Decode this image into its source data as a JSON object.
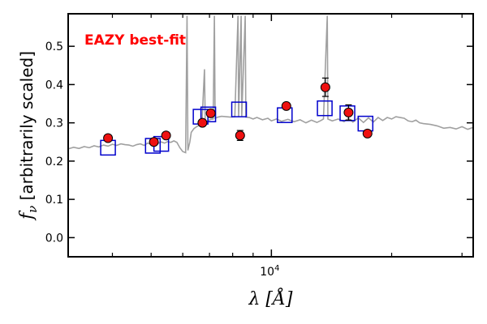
{
  "chart_data": {
    "type": "scatter",
    "xlabel": "λ [Å]",
    "ylabel": "f_ν [arbitrarily scaled]",
    "xscale": "log",
    "xlim": [
      3100,
      32000
    ],
    "ylim": [
      -0.05,
      0.585
    ],
    "grid": false,
    "annotation": {
      "text": "EAZY best-fit",
      "color": "#ff0000"
    },
    "yticks": [
      {
        "value": 0.0,
        "label": "0.0"
      },
      {
        "value": 0.1,
        "label": "0.1"
      },
      {
        "value": 0.2,
        "label": "0.2"
      },
      {
        "value": 0.3,
        "label": "0.3"
      },
      {
        "value": 0.4,
        "label": "0.4"
      },
      {
        "value": 0.5,
        "label": "0.5"
      }
    ],
    "xticks_major": [
      {
        "value": 10000,
        "base": "10",
        "exp": "4"
      }
    ],
    "xticks_minor": [
      4000,
      5000,
      6000,
      7000,
      8000,
      9000,
      20000,
      30000
    ],
    "series": [
      {
        "type": "line",
        "color": "#a0a0a0",
        "points": [
          [
            3100,
            0.232
          ],
          [
            3200,
            0.236
          ],
          [
            3300,
            0.233
          ],
          [
            3400,
            0.238
          ],
          [
            3500,
            0.235
          ],
          [
            3600,
            0.24
          ],
          [
            3700,
            0.237
          ],
          [
            3800,
            0.242
          ],
          [
            3900,
            0.239
          ],
          [
            4000,
            0.244
          ],
          [
            4100,
            0.241
          ],
          [
            4200,
            0.245
          ],
          [
            4300,
            0.243
          ],
          [
            4400,
            0.242
          ],
          [
            4500,
            0.239
          ],
          [
            4600,
            0.243
          ],
          [
            4700,
            0.245
          ],
          [
            4800,
            0.241
          ],
          [
            4900,
            0.247
          ],
          [
            5000,
            0.244
          ],
          [
            5100,
            0.249
          ],
          [
            5200,
            0.246
          ],
          [
            5300,
            0.25
          ],
          [
            5400,
            0.247
          ],
          [
            5500,
            0.251
          ],
          [
            5600,
            0.249
          ],
          [
            5700,
            0.253
          ],
          [
            5800,
            0.249
          ],
          [
            5900,
            0.235
          ],
          [
            6000,
            0.225
          ],
          [
            6100,
            0.222
          ],
          [
            6150,
            0.58
          ],
          [
            6180,
            0.228
          ],
          [
            6250,
            0.25
          ],
          [
            6300,
            0.275
          ],
          [
            6400,
            0.285
          ],
          [
            6500,
            0.29
          ],
          [
            6600,
            0.294
          ],
          [
            6700,
            0.296
          ],
          [
            6800,
            0.44
          ],
          [
            6830,
            0.3
          ],
          [
            6950,
            0.306
          ],
          [
            7050,
            0.309
          ],
          [
            7150,
            0.31
          ],
          [
            7200,
            0.58
          ],
          [
            7230,
            0.312
          ],
          [
            7350,
            0.315
          ],
          [
            7500,
            0.317
          ],
          [
            7700,
            0.316
          ],
          [
            7900,
            0.315
          ],
          [
            8100,
            0.316
          ],
          [
            8250,
            0.58
          ],
          [
            8280,
            0.316
          ],
          [
            8400,
            0.58
          ],
          [
            8430,
            0.317
          ],
          [
            8600,
            0.58
          ],
          [
            8630,
            0.315
          ],
          [
            8800,
            0.314
          ],
          [
            9000,
            0.31
          ],
          [
            9200,
            0.314
          ],
          [
            9500,
            0.308
          ],
          [
            9800,
            0.312
          ],
          [
            10000,
            0.305
          ],
          [
            10300,
            0.31
          ],
          [
            10600,
            0.304
          ],
          [
            11000,
            0.309
          ],
          [
            11400,
            0.303
          ],
          [
            11800,
            0.308
          ],
          [
            12200,
            0.3
          ],
          [
            12600,
            0.307
          ],
          [
            13000,
            0.301
          ],
          [
            13300,
            0.306
          ],
          [
            13500,
            0.31
          ],
          [
            13800,
            0.58
          ],
          [
            13850,
            0.31
          ],
          [
            14200,
            0.305
          ],
          [
            14700,
            0.31
          ],
          [
            15200,
            0.303
          ],
          [
            15600,
            0.312
          ],
          [
            16000,
            0.302
          ],
          [
            16500,
            0.313
          ],
          [
            17000,
            0.301
          ],
          [
            17500,
            0.313
          ],
          [
            18000,
            0.302
          ],
          [
            18500,
            0.314
          ],
          [
            19000,
            0.306
          ],
          [
            19500,
            0.314
          ],
          [
            20000,
            0.31
          ],
          [
            20500,
            0.316
          ],
          [
            21000,
            0.314
          ],
          [
            21500,
            0.312
          ],
          [
            22000,
            0.305
          ],
          [
            22500,
            0.303
          ],
          [
            23000,
            0.307
          ],
          [
            23500,
            0.3
          ],
          [
            24000,
            0.298
          ],
          [
            25000,
            0.296
          ],
          [
            26000,
            0.292
          ],
          [
            27000,
            0.286
          ],
          [
            28000,
            0.288
          ],
          [
            29000,
            0.284
          ],
          [
            30000,
            0.29
          ],
          [
            31000,
            0.283
          ],
          [
            32000,
            0.288
          ]
        ]
      },
      {
        "type": "open-square",
        "color": "#0000cc",
        "points": [
          [
            3900,
            0.235
          ],
          [
            5050,
            0.24
          ],
          [
            5300,
            0.245
          ],
          [
            6650,
            0.316
          ],
          [
            6950,
            0.322
          ],
          [
            8300,
            0.335
          ],
          [
            10800,
            0.32
          ],
          [
            13600,
            0.338
          ],
          [
            15500,
            0.325
          ],
          [
            17200,
            0.298
          ]
        ]
      },
      {
        "type": "filled-circle-errorbar",
        "color": "#ee1111",
        "points": [
          [
            3900,
            0.26,
            0.008
          ],
          [
            5080,
            0.25,
            0.006
          ],
          [
            5450,
            0.267,
            0.006
          ],
          [
            6720,
            0.3,
            0.006
          ],
          [
            7050,
            0.325,
            0.006
          ],
          [
            8350,
            0.267,
            0.013
          ],
          [
            10900,
            0.344,
            0.008
          ],
          [
            13650,
            0.393,
            0.024
          ],
          [
            15600,
            0.327,
            0.02
          ],
          [
            17400,
            0.272,
            0.008
          ]
        ]
      }
    ]
  }
}
